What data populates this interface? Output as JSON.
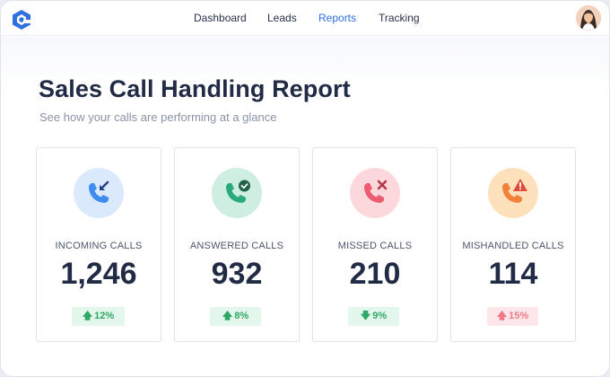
{
  "nav": {
    "items": [
      {
        "label": "Dashboard",
        "active": false
      },
      {
        "label": "Leads",
        "active": false
      },
      {
        "label": "Reports",
        "active": true
      },
      {
        "label": "Tracking",
        "active": false
      }
    ]
  },
  "header": {
    "title": "Sales Call Handling Report",
    "subtitle": "See how your calls are performing at a glance"
  },
  "cards": [
    {
      "label": "INCOMING CALLS",
      "value": "1,246",
      "change": "12%",
      "trend": "up",
      "icon": "incoming-call-icon",
      "color": "#3f8cf0",
      "bg": "#dbe9fd"
    },
    {
      "label": "ANSWERED CALLS",
      "value": "932",
      "change": "8%",
      "trend": "up",
      "icon": "answered-call-icon",
      "color": "#2aa979",
      "bg": "#cdeee0"
    },
    {
      "label": "MISSED CALLS",
      "value": "210",
      "change": "9%",
      "trend": "down",
      "icon": "missed-call-icon",
      "color": "#ee5a6f",
      "bg": "#fcd8dc"
    },
    {
      "label": "MISHANDLED CALLS",
      "value": "114",
      "change": "15%",
      "trend": "up",
      "icon": "mishandled-call-icon",
      "color": "#f0813a",
      "bg": "#fde1bd"
    }
  ],
  "colors": {
    "accent": "#2f6fe0",
    "positive": "#2fa866",
    "negative": "#f07a86"
  }
}
